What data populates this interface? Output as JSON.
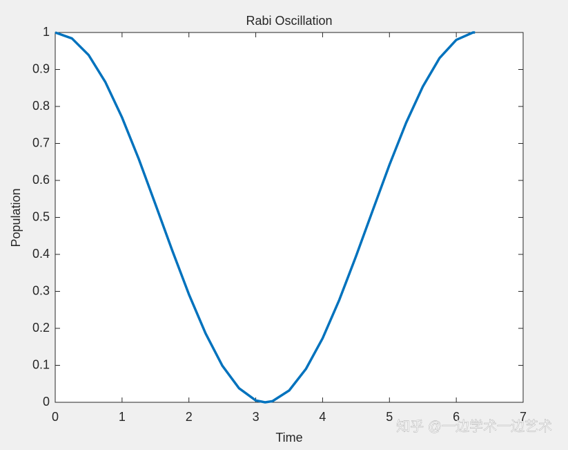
{
  "chart_data": {
    "type": "line",
    "title": "Rabi Oscillation",
    "x_label": "Time",
    "y_label": "Population",
    "x": [
      0,
      0.25,
      0.5,
      0.75,
      1.0,
      1.25,
      1.5,
      1.75,
      2.0,
      2.25,
      2.5,
      2.75,
      3.0,
      3.14,
      3.25,
      3.5,
      3.75,
      4.0,
      4.25,
      4.5,
      4.75,
      5.0,
      5.25,
      5.5,
      5.75,
      6.0,
      6.25,
      6.28
    ],
    "series": [
      {
        "name": "Population",
        "color": "#0072bd",
        "values": [
          1,
          0.984,
          0.939,
          0.866,
          0.77,
          0.658,
          0.535,
          0.411,
          0.292,
          0.186,
          0.099,
          0.038,
          0.005,
          0.0,
          0.003,
          0.032,
          0.09,
          0.173,
          0.277,
          0.395,
          0.519,
          0.642,
          0.756,
          0.854,
          0.931,
          0.98,
          1.0,
          1.0
        ]
      }
    ],
    "xlim": [
      0,
      7
    ],
    "ylim": [
      0,
      1
    ],
    "xticks": [
      0,
      1,
      2,
      3,
      4,
      5,
      6,
      7
    ],
    "yticks": [
      0,
      0.1,
      0.2,
      0.3,
      0.4,
      0.5,
      0.6,
      0.7,
      0.8,
      0.9,
      1
    ],
    "grid": false,
    "watermark": "知乎 @一边学术一边艺术"
  }
}
